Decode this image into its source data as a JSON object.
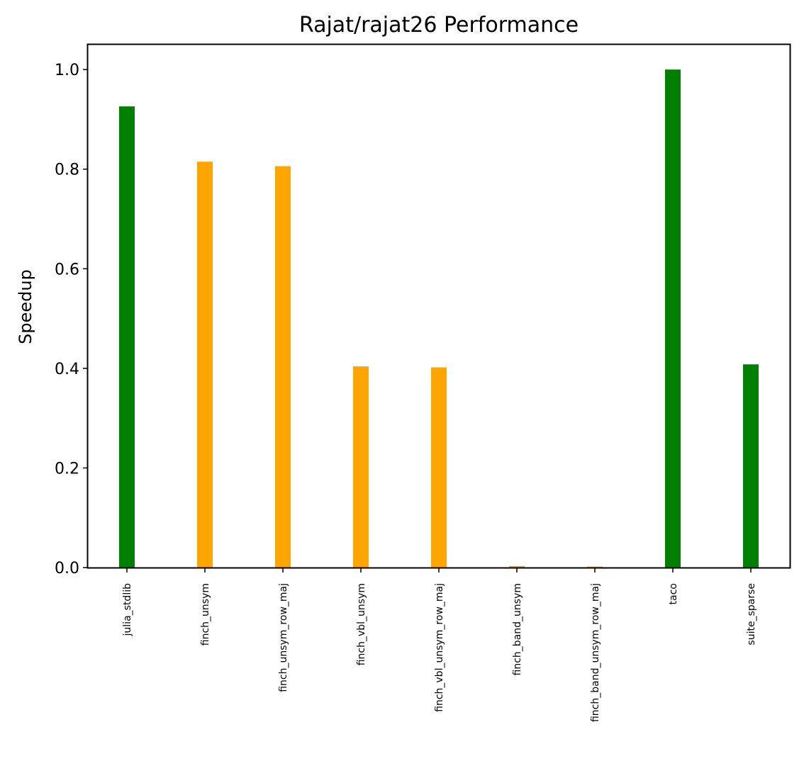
{
  "chart_data": {
    "type": "bar",
    "title": "Rajat/rajat26 Performance",
    "xlabel": "",
    "ylabel": "Speedup",
    "ylim": [
      0,
      1.05
    ],
    "yticks": [
      "0.0",
      "0.2",
      "0.4",
      "0.6",
      "0.8",
      "1.0"
    ],
    "ytick_values": [
      0,
      0.2,
      0.4,
      0.6,
      0.8,
      1.0
    ],
    "grid": false,
    "categories": [
      "julia_stdlib",
      "finch_unsym",
      "finch_unsym_row_maj",
      "finch_vbl_unsym",
      "finch_vbl_unsym_row_maj",
      "finch_band_unsym",
      "finch_band_unsym_row_maj",
      "taco",
      "suite_sparse"
    ],
    "values": [
      0.926,
      0.815,
      0.806,
      0.404,
      0.402,
      0.003,
      0.002,
      1.0,
      0.408
    ],
    "bar_colors": [
      "#008000",
      "#FFA500",
      "#FFA500",
      "#FFA500",
      "#FFA500",
      "#FFA500",
      "#FFA500",
      "#008000",
      "#008000"
    ]
  }
}
